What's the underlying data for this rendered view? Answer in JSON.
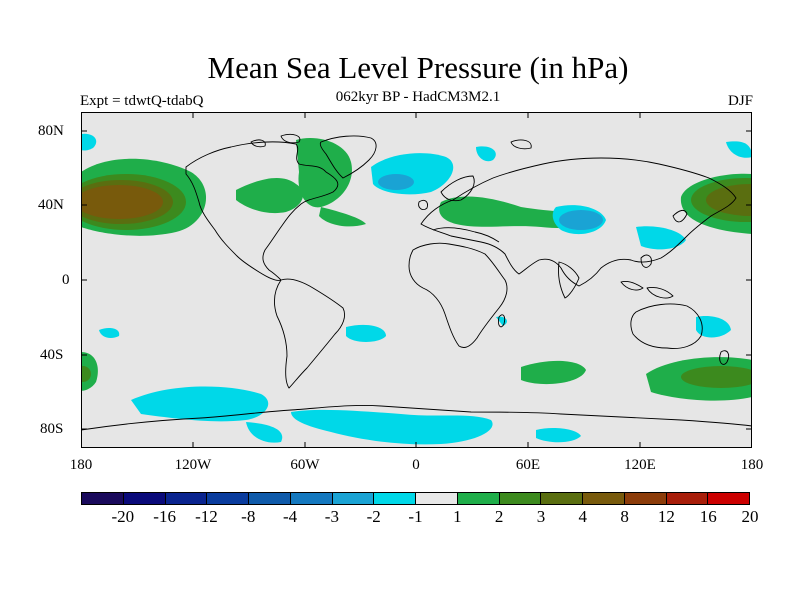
{
  "title": "Mean Sea Level Pressure (in hPa)",
  "experiment": "Expt = tdwtQ-tdabQ",
  "model": "062kyr BP - HadCM3M2.1",
  "season": "DJF",
  "y_ticks": [
    "80N",
    "40N",
    "0",
    "40S",
    "80S"
  ],
  "x_ticks": [
    "180",
    "120W",
    "60W",
    "0",
    "60E",
    "120E",
    "180"
  ],
  "colorbar_labels": [
    "-20",
    "-16",
    "-12",
    "-8",
    "-4",
    "-3",
    "-2",
    "-1",
    "1",
    "2",
    "3",
    "4",
    "8",
    "12",
    "16",
    "20"
  ],
  "colorbar_colors": [
    "#1a0a5c",
    "#0a0a7a",
    "#0a248f",
    "#0a3c9e",
    "#0f5aaa",
    "#1478bf",
    "#1aa3d4",
    "#00d8e8",
    "#e8e8e8",
    "#1fae4a",
    "#3c8a1e",
    "#5a6e10",
    "#785a0c",
    "#8c3c0a",
    "#a81e0a",
    "#cc0000"
  ],
  "colors": {
    "land_background": "#e6e6e6",
    "positive_2": "#1fae4a",
    "positive_3": "#3c8a1e",
    "positive_4": "#5a6e10",
    "positive_8": "#785a0c",
    "negative_1": "#00d8e8",
    "negative_2": "#1aa3d4"
  }
}
